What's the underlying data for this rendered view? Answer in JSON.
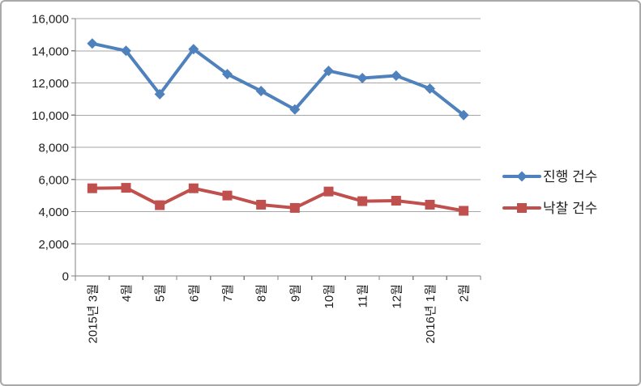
{
  "chart_data": {
    "type": "line",
    "title": "",
    "xlabel": "",
    "ylabel": "",
    "categories": [
      "2015년 3월",
      "4월",
      "5월",
      "6월",
      "7월",
      "8월",
      "9월",
      "10월",
      "11월",
      "12월",
      "2016년 1월",
      "2월"
    ],
    "series": [
      {
        "name": "진행 건수",
        "color": "#4F81BD",
        "marker": "diamond",
        "values": [
          14450,
          14000,
          11300,
          14100,
          12550,
          11500,
          10350,
          12750,
          12300,
          12450,
          11650,
          10000
        ]
      },
      {
        "name": "낙찰 건수",
        "color": "#C0504D",
        "marker": "square",
        "values": [
          5450,
          5480,
          4400,
          5450,
          5000,
          4430,
          4230,
          5250,
          4650,
          4680,
          4430,
          4050
        ]
      }
    ],
    "ylim": [
      0,
      16000
    ],
    "ytick_step": 2000,
    "ytick_labels": [
      "0",
      "2,000",
      "4,000",
      "6,000",
      "8,000",
      "10,000",
      "12,000",
      "14,000",
      "16,000"
    ],
    "grid": true,
    "legend_position": "right",
    "colors": {
      "axis": "#808080",
      "gridline": "#A6A6A6",
      "text": "#1f1f1f",
      "background": "#ffffff",
      "frame_border": "#a9a9a9"
    }
  }
}
